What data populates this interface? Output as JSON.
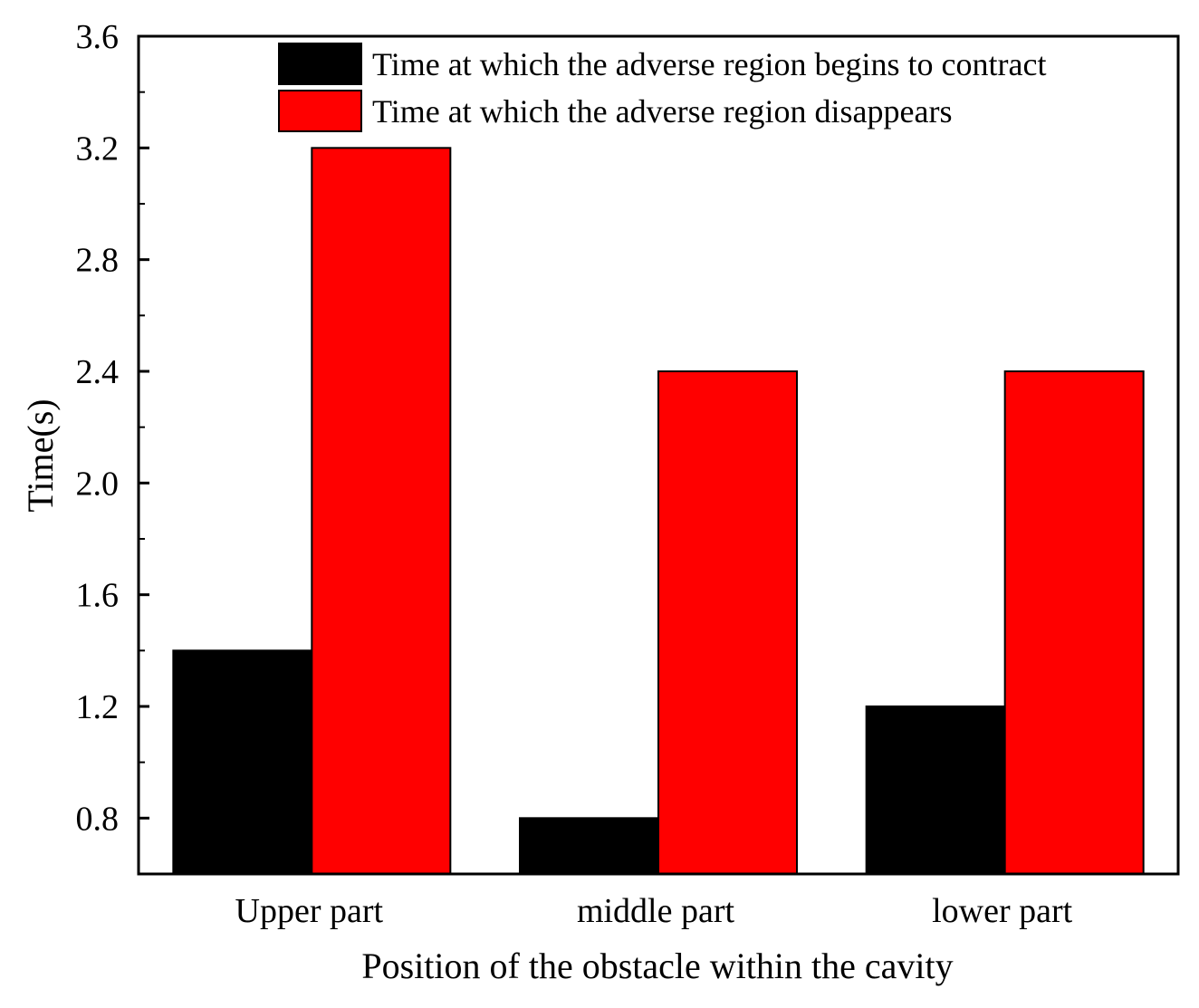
{
  "chart_data": {
    "type": "bar",
    "title": "",
    "xlabel": "Position of the obstacle within the cavity",
    "ylabel": "Time(s)",
    "categories": [
      "Upper part",
      "middle part",
      "lower part"
    ],
    "series": [
      {
        "name": "Time at which the adverse region begins to contract",
        "color": "#000000",
        "values": [
          1.4,
          0.8,
          1.2
        ]
      },
      {
        "name": "Time at which the adverse region disappears",
        "color": "#ff0000",
        "values": [
          3.2,
          2.4,
          2.4
        ]
      }
    ],
    "ylim": [
      0.6,
      3.6
    ],
    "yticks": [
      "0.8",
      "1.2",
      "1.6",
      "2.0",
      "2.4",
      "2.8",
      "3.2",
      "3.6"
    ],
    "grid": false,
    "legend_position": "top"
  }
}
